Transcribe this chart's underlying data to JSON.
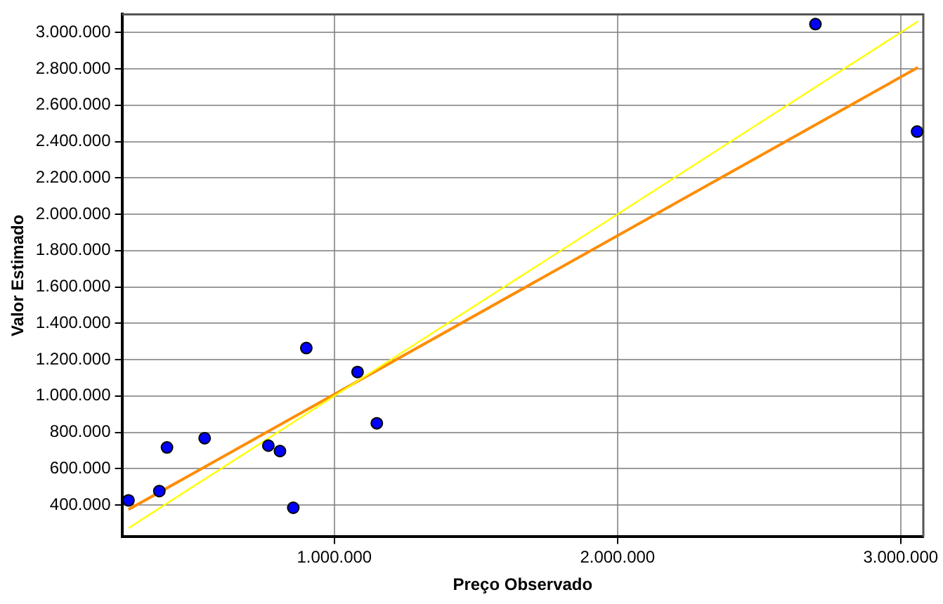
{
  "chart_data": {
    "type": "scatter",
    "xlabel": "Preço Observado",
    "ylabel": "Valor Estimado",
    "xlim": [
      250000,
      3080000
    ],
    "ylim": [
      225000,
      3100000
    ],
    "xticks": [
      {
        "value": 1000000,
        "label": "1.000.000"
      },
      {
        "value": 2000000,
        "label": "2.000.000"
      },
      {
        "value": 3000000,
        "label": "3.000.000"
      }
    ],
    "yticks": [
      {
        "value": 400000,
        "label": "400.000"
      },
      {
        "value": 600000,
        "label": "600.000"
      },
      {
        "value": 800000,
        "label": "800.000"
      },
      {
        "value": 1000000,
        "label": "1.000.000"
      },
      {
        "value": 1200000,
        "label": "1.200.000"
      },
      {
        "value": 1400000,
        "label": "1.400.000"
      },
      {
        "value": 1600000,
        "label": "1.600.000"
      },
      {
        "value": 1800000,
        "label": "1.800.000"
      },
      {
        "value": 2000000,
        "label": "2.000.000"
      },
      {
        "value": 2200000,
        "label": "2.200.000"
      },
      {
        "value": 2400000,
        "label": "2.400.000"
      },
      {
        "value": 2600000,
        "label": "2.600.000"
      },
      {
        "value": 2800000,
        "label": "2.800.000"
      },
      {
        "value": 3000000,
        "label": "3.000.000"
      }
    ],
    "grid": true,
    "legend": false,
    "series": [
      {
        "type": "line",
        "marker": "none",
        "color": "#ffff00",
        "x": [
          273000,
          3061000
        ],
        "values": [
          273000,
          3061000
        ]
      },
      {
        "type": "line",
        "marker": "none",
        "color": "#ff8c00",
        "x": [
          273000,
          3061000
        ],
        "values": [
          375000,
          2808000
        ]
      },
      {
        "marker": "circle",
        "color": "#0000ff",
        "x": [
          273000,
          382000,
          409000,
          542000,
          767000,
          808000,
          855000,
          901000,
          1082000,
          1150000,
          2699000,
          3058000
        ],
        "values": [
          426000,
          477000,
          717000,
          768000,
          727000,
          697000,
          385000,
          1264000,
          1132000,
          850000,
          3046000,
          2455000
        ]
      }
    ]
  }
}
